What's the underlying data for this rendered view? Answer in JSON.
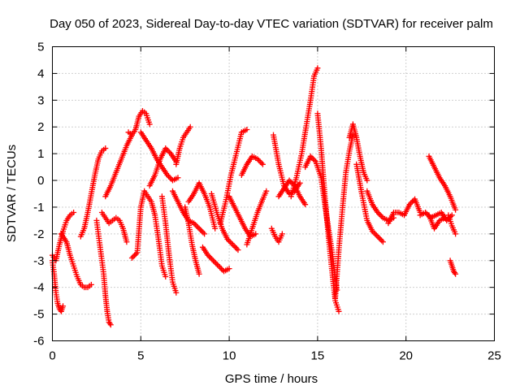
{
  "chart_data": {
    "type": "scatter",
    "title": "Day 050 of 2023, Sidereal Day-to-day VTEC variation (SDTVAR) for receiver palm",
    "xlabel": "GPS time / hours",
    "ylabel": "SDTVAR / TECUs",
    "xlim": [
      0,
      25
    ],
    "ylim": [
      -6,
      5
    ],
    "xticks": [
      "0",
      "5",
      "10",
      "15",
      "20",
      "25"
    ],
    "yticks": [
      "-6",
      "-5",
      "-4",
      "-3",
      "-2",
      "-1",
      "0",
      "1",
      "2",
      "3",
      "4",
      "5"
    ],
    "grid": true,
    "marker": "+",
    "color": "#ff0000",
    "series": [
      {
        "name": "seg1",
        "x": [
          0.0,
          0.1,
          0.2,
          0.3,
          0.4,
          0.5,
          0.6
        ],
        "y": [
          -3.0,
          -3.5,
          -4.2,
          -4.6,
          -4.8,
          -4.9,
          -4.7
        ]
      },
      {
        "name": "seg2",
        "x": [
          0.0,
          0.2,
          0.4,
          0.6,
          0.8,
          1.0,
          1.2
        ],
        "y": [
          -2.8,
          -3.0,
          -2.4,
          -1.9,
          -1.5,
          -1.3,
          -1.2
        ]
      },
      {
        "name": "seg3",
        "x": [
          0.5,
          0.8,
          1.0,
          1.2,
          1.4,
          1.6,
          1.8,
          2.0,
          2.2
        ],
        "y": [
          -2.0,
          -2.3,
          -2.8,
          -3.2,
          -3.6,
          -3.9,
          -4.0,
          -4.0,
          -3.9
        ]
      },
      {
        "name": "seg4",
        "x": [
          1.6,
          1.8,
          2.0,
          2.2,
          2.4,
          2.6,
          2.8,
          3.0
        ],
        "y": [
          -2.1,
          -1.8,
          -1.2,
          -0.5,
          0.2,
          0.8,
          1.1,
          1.2
        ]
      },
      {
        "name": "seg5",
        "x": [
          2.5,
          2.7,
          2.9,
          3.0,
          3.1,
          3.2,
          3.3
        ],
        "y": [
          -1.5,
          -2.5,
          -3.5,
          -4.3,
          -4.9,
          -5.3,
          -5.4
        ]
      },
      {
        "name": "seg6",
        "x": [
          2.8,
          3.0,
          3.2,
          3.4,
          3.6,
          3.8,
          4.0,
          4.2
        ],
        "y": [
          -1.2,
          -1.4,
          -1.6,
          -1.5,
          -1.4,
          -1.5,
          -1.8,
          -2.3
        ]
      },
      {
        "name": "seg7",
        "x": [
          3.0,
          3.3,
          3.6,
          3.9,
          4.2,
          4.5
        ],
        "y": [
          -0.6,
          -0.2,
          0.3,
          0.8,
          1.3,
          1.7
        ]
      },
      {
        "name": "seg8",
        "x": [
          4.3,
          4.5,
          4.7,
          4.9,
          5.1,
          5.3,
          5.5
        ],
        "y": [
          1.8,
          1.7,
          1.9,
          2.4,
          2.6,
          2.5,
          2.1
        ]
      },
      {
        "name": "seg9",
        "x": [
          5.0,
          5.3,
          5.6,
          5.9,
          6.2,
          6.5,
          6.8,
          7.1
        ],
        "y": [
          1.8,
          1.5,
          1.2,
          0.8,
          0.5,
          0.2,
          0.0,
          0.1
        ]
      },
      {
        "name": "seg10",
        "x": [
          4.5,
          4.8,
          5.0,
          5.2,
          5.4,
          5.6,
          5.8,
          6.0,
          6.2,
          6.4
        ],
        "y": [
          -2.9,
          -2.7,
          -1.0,
          -0.4,
          -0.6,
          -0.8,
          -1.3,
          -2.2,
          -3.2,
          -3.6
        ]
      },
      {
        "name": "seg11",
        "x": [
          5.5,
          5.8,
          6.1,
          6.4,
          6.7,
          7.0
        ],
        "y": [
          -0.2,
          0.2,
          0.8,
          1.2,
          1.0,
          0.7
        ]
      },
      {
        "name": "seg12",
        "x": [
          6.2,
          6.4,
          6.6,
          6.8,
          7.0
        ],
        "y": [
          -0.6,
          -1.6,
          -2.8,
          -3.8,
          -4.2
        ]
      },
      {
        "name": "seg13",
        "x": [
          7.0,
          7.2,
          7.4,
          7.6,
          7.8
        ],
        "y": [
          0.6,
          1.2,
          1.6,
          1.8,
          2.0
        ]
      },
      {
        "name": "seg14",
        "x": [
          6.8,
          7.1,
          7.4,
          7.7,
          8.0,
          8.3,
          8.6
        ],
        "y": [
          -0.4,
          -0.8,
          -1.2,
          -1.5,
          -1.6,
          -1.8,
          -2.0
        ]
      },
      {
        "name": "seg15",
        "x": [
          7.5,
          7.7,
          7.9,
          8.1,
          8.3
        ],
        "y": [
          -1.0,
          -1.6,
          -2.4,
          -3.0,
          -3.5
        ]
      },
      {
        "name": "seg16",
        "x": [
          7.7,
          8.0,
          8.3,
          8.6,
          8.9,
          9.2
        ],
        "y": [
          -0.8,
          -0.5,
          -0.1,
          -0.5,
          -1.0,
          -1.8
        ]
      },
      {
        "name": "seg17",
        "x": [
          8.5,
          8.8,
          9.1,
          9.4,
          9.7,
          10.0
        ],
        "y": [
          -2.5,
          -2.8,
          -3.0,
          -3.2,
          -3.4,
          -3.3
        ]
      },
      {
        "name": "seg18",
        "x": [
          9.0,
          9.3,
          9.6,
          9.9,
          10.2,
          10.5
        ],
        "y": [
          -0.5,
          -1.2,
          -1.8,
          -2.2,
          -2.4,
          -2.6
        ]
      },
      {
        "name": "seg19",
        "x": [
          9.5,
          9.8,
          10.1,
          10.4,
          10.7,
          11.0
        ],
        "y": [
          -1.6,
          -0.8,
          0.2,
          1.0,
          1.8,
          1.9
        ]
      },
      {
        "name": "seg20",
        "x": [
          10.0,
          10.3,
          10.6,
          10.9,
          11.2,
          11.5
        ],
        "y": [
          -0.6,
          -1.0,
          -1.4,
          -1.8,
          -2.1,
          -2.0
        ]
      },
      {
        "name": "seg21",
        "x": [
          10.7,
          11.0,
          11.3,
          11.6,
          11.9
        ],
        "y": [
          0.2,
          0.6,
          0.9,
          0.8,
          0.6
        ]
      },
      {
        "name": "seg22",
        "x": [
          11.0,
          11.3,
          11.6,
          11.9,
          12.1
        ],
        "y": [
          -2.4,
          -1.8,
          -1.2,
          -0.7,
          -0.4
        ]
      },
      {
        "name": "seg23",
        "x": [
          12.4,
          12.6,
          12.8,
          13.0
        ],
        "y": [
          -1.8,
          -2.1,
          -2.3,
          -2.0
        ]
      },
      {
        "name": "seg24",
        "x": [
          12.5,
          12.8,
          13.1,
          13.4,
          13.7,
          14.0
        ],
        "y": [
          1.7,
          0.6,
          -0.2,
          -0.5,
          -0.4,
          -0.1
        ]
      },
      {
        "name": "seg25",
        "x": [
          12.8,
          13.1,
          13.4,
          13.7,
          14.0,
          14.3
        ],
        "y": [
          -0.6,
          -0.3,
          0.0,
          -0.2,
          -0.6,
          -0.9
        ]
      },
      {
        "name": "seg26",
        "x": [
          13.5,
          13.8,
          14.1,
          14.4,
          14.6,
          14.8,
          15.0
        ],
        "y": [
          -0.6,
          0.1,
          1.0,
          2.2,
          3.0,
          3.9,
          4.2
        ]
      },
      {
        "name": "seg27",
        "x": [
          14.3,
          14.6,
          14.9,
          15.2,
          15.5,
          15.8,
          16.1
        ],
        "y": [
          0.5,
          0.9,
          0.7,
          0.1,
          -1.3,
          -2.6,
          -4.1
        ]
      },
      {
        "name": "seg28",
        "x": [
          15.0,
          15.2,
          15.4,
          15.6,
          15.8,
          16.0,
          16.2
        ],
        "y": [
          2.5,
          1.2,
          -0.5,
          -2.0,
          -3.3,
          -4.5,
          -4.9
        ]
      },
      {
        "name": "seg29",
        "x": [
          16.0,
          16.2,
          16.4,
          16.6,
          16.8,
          17.0
        ],
        "y": [
          -4.4,
          -2.6,
          -1.1,
          0.3,
          1.1,
          1.7
        ]
      },
      {
        "name": "seg30",
        "x": [
          16.8,
          17.0,
          17.2,
          17.4,
          17.6,
          17.8
        ],
        "y": [
          1.6,
          2.1,
          1.6,
          0.9,
          0.3,
          0.0
        ]
      },
      {
        "name": "seg31",
        "x": [
          17.2,
          17.5,
          17.8,
          18.1,
          18.4,
          18.7
        ],
        "y": [
          0.6,
          -0.5,
          -1.5,
          -1.9,
          -2.1,
          -2.3
        ]
      },
      {
        "name": "seg32",
        "x": [
          17.8,
          18.1,
          18.4,
          18.7,
          19.0,
          19.3
        ],
        "y": [
          -0.4,
          -0.9,
          -1.2,
          -1.4,
          -1.5,
          -1.4
        ]
      },
      {
        "name": "seg33",
        "x": [
          19.0,
          19.3,
          19.6,
          19.9,
          20.2,
          20.5,
          20.8
        ],
        "y": [
          -1.6,
          -1.2,
          -1.2,
          -1.3,
          -0.9,
          -0.7,
          -1.2
        ]
      },
      {
        "name": "seg34",
        "x": [
          20.8,
          21.1,
          21.4,
          21.7,
          22.0,
          22.3,
          22.6
        ],
        "y": [
          -1.3,
          -1.2,
          -1.4,
          -1.3,
          -1.2,
          -1.5,
          -1.3
        ]
      },
      {
        "name": "seg35",
        "x": [
          21.3,
          21.6,
          21.9,
          22.2,
          22.5,
          22.8
        ],
        "y": [
          0.9,
          0.5,
          0.1,
          -0.2,
          -0.6,
          -1.1
        ]
      },
      {
        "name": "seg36",
        "x": [
          21.3,
          21.6,
          21.9,
          22.2
        ],
        "y": [
          -1.3,
          -1.8,
          -1.5,
          -1.4
        ]
      },
      {
        "name": "seg37",
        "x": [
          22.4,
          22.6,
          22.8
        ],
        "y": [
          -1.3,
          -1.7,
          -2.0
        ]
      },
      {
        "name": "seg38",
        "x": [
          22.5,
          22.6,
          22.7,
          22.8
        ],
        "y": [
          -3.0,
          -3.2,
          -3.4,
          -3.5
        ]
      }
    ]
  }
}
